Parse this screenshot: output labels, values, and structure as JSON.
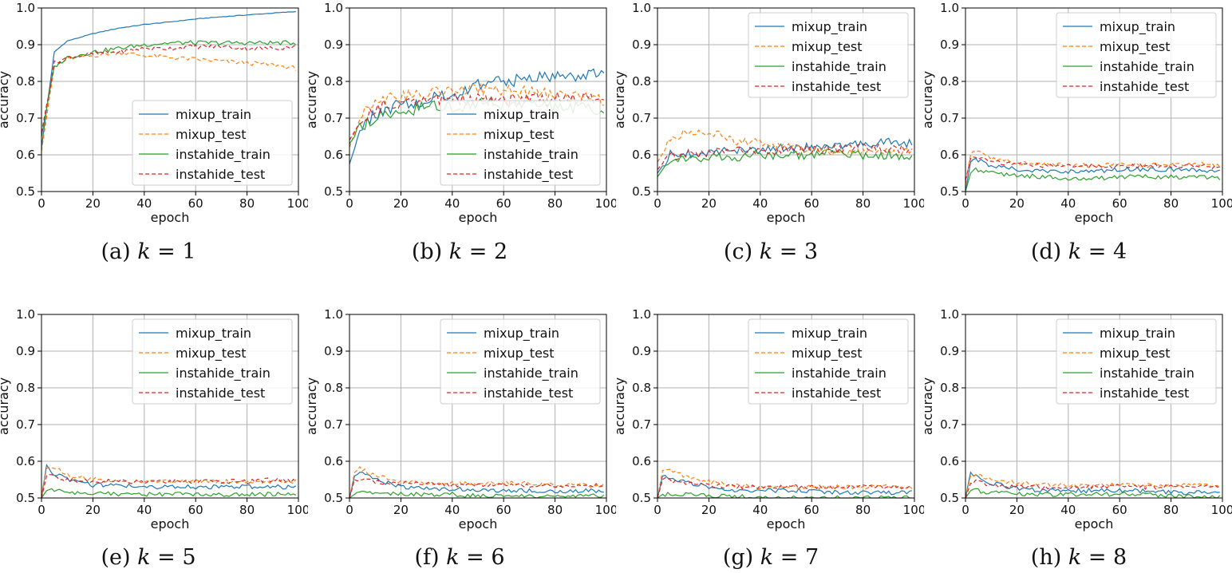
{
  "figure": {
    "panels": [
      {
        "letter": "(a)",
        "kvar": "k",
        "eq": "= 1"
      },
      {
        "letter": "(b)",
        "kvar": "k",
        "eq": "= 2"
      },
      {
        "letter": "(c)",
        "kvar": "k",
        "eq": "= 3"
      },
      {
        "letter": "(d)",
        "kvar": "k",
        "eq": "= 4"
      },
      {
        "letter": "(e)",
        "kvar": "k",
        "eq": "= 5"
      },
      {
        "letter": "(f)",
        "kvar": "k",
        "eq": "= 6"
      },
      {
        "letter": "(g)",
        "kvar": "k",
        "eq": "= 7"
      },
      {
        "letter": "(h)",
        "kvar": "k",
        "eq": "= 8"
      }
    ]
  },
  "colors": {
    "mixup_train": "#1f77b4",
    "mixup_test": "#ff7f0e",
    "instahide_train": "#2ca02c",
    "instahide_test": "#d62728",
    "grid": "#b0b0b0"
  },
  "chart_data": [
    {
      "type": "line",
      "title": "(a) k = 1",
      "xlabel": "epoch",
      "ylabel": "accuracy",
      "xlim": [
        0,
        100
      ],
      "ylim": [
        0.5,
        1.0
      ],
      "xticks": [
        "0",
        "20",
        "40",
        "60",
        "80",
        "100"
      ],
      "yticks": [
        "0.5",
        "0.6",
        "0.7",
        "0.8",
        "0.9",
        "1.0"
      ],
      "grid": true,
      "legend": "lower-right",
      "x": [
        0,
        5,
        10,
        20,
        30,
        40,
        50,
        60,
        70,
        80,
        90,
        99
      ],
      "series": [
        {
          "name": "mixup_train",
          "style": "solid",
          "color": "#1f77b4",
          "values": [
            0.62,
            0.88,
            0.91,
            0.93,
            0.945,
            0.955,
            0.962,
            0.97,
            0.976,
            0.981,
            0.986,
            0.99
          ]
        },
        {
          "name": "mixup_test",
          "style": "dashed",
          "color": "#ff7f0e",
          "values": [
            0.61,
            0.84,
            0.86,
            0.87,
            0.88,
            0.87,
            0.865,
            0.86,
            0.855,
            0.85,
            0.845,
            0.835
          ]
        },
        {
          "name": "instahide_train",
          "style": "solid",
          "color": "#2ca02c",
          "values": [
            0.65,
            0.84,
            0.865,
            0.88,
            0.89,
            0.9,
            0.905,
            0.905,
            0.905,
            0.905,
            0.905,
            0.905
          ]
        },
        {
          "name": "instahide_test",
          "style": "dashed",
          "color": "#d62728",
          "values": [
            0.66,
            0.85,
            0.865,
            0.875,
            0.88,
            0.89,
            0.89,
            0.895,
            0.895,
            0.89,
            0.89,
            0.895
          ]
        }
      ]
    },
    {
      "type": "line",
      "title": "(b) k = 2",
      "xlabel": "epoch",
      "ylabel": "accuracy",
      "xlim": [
        0,
        100
      ],
      "ylim": [
        0.5,
        1.0
      ],
      "xticks": [
        "0",
        "20",
        "40",
        "60",
        "80",
        "100"
      ],
      "yticks": [
        "0.5",
        "0.6",
        "0.7",
        "0.8",
        "0.9",
        "1.0"
      ],
      "grid": true,
      "legend": "lower-right",
      "x": [
        0,
        5,
        10,
        20,
        30,
        40,
        50,
        60,
        70,
        80,
        90,
        99
      ],
      "series": [
        {
          "name": "mixup_train",
          "style": "solid",
          "color": "#1f77b4",
          "values": [
            0.575,
            0.68,
            0.71,
            0.74,
            0.75,
            0.76,
            0.79,
            0.8,
            0.81,
            0.81,
            0.82,
            0.82
          ]
        },
        {
          "name": "mixup_test",
          "style": "dashed",
          "color": "#ff7f0e",
          "values": [
            0.62,
            0.72,
            0.75,
            0.76,
            0.77,
            0.77,
            0.78,
            0.78,
            0.77,
            0.76,
            0.76,
            0.75
          ]
        },
        {
          "name": "instahide_train",
          "style": "solid",
          "color": "#2ca02c",
          "values": [
            0.63,
            0.68,
            0.7,
            0.72,
            0.73,
            0.73,
            0.74,
            0.74,
            0.74,
            0.73,
            0.73,
            0.72
          ]
        },
        {
          "name": "instahide_test",
          "style": "dashed",
          "color": "#d62728",
          "values": [
            0.64,
            0.7,
            0.73,
            0.74,
            0.75,
            0.75,
            0.75,
            0.75,
            0.75,
            0.75,
            0.75,
            0.745
          ]
        }
      ]
    },
    {
      "type": "line",
      "title": "(c) k = 3",
      "xlabel": "epoch",
      "ylabel": "accuracy",
      "xlim": [
        0,
        100
      ],
      "ylim": [
        0.5,
        1.0
      ],
      "xticks": [
        "0",
        "20",
        "40",
        "60",
        "80",
        "100"
      ],
      "yticks": [
        "0.5",
        "0.6",
        "0.7",
        "0.8",
        "0.9",
        "1.0"
      ],
      "grid": true,
      "legend": "upper-right",
      "x": [
        0,
        5,
        10,
        20,
        30,
        40,
        50,
        60,
        70,
        80,
        90,
        99
      ],
      "series": [
        {
          "name": "mixup_train",
          "style": "solid",
          "color": "#1f77b4",
          "values": [
            0.55,
            0.6,
            0.6,
            0.61,
            0.61,
            0.615,
            0.62,
            0.62,
            0.625,
            0.63,
            0.635,
            0.63
          ]
        },
        {
          "name": "mixup_test",
          "style": "dashed",
          "color": "#ff7f0e",
          "values": [
            0.58,
            0.64,
            0.66,
            0.66,
            0.64,
            0.63,
            0.62,
            0.615,
            0.61,
            0.61,
            0.61,
            0.61
          ]
        },
        {
          "name": "instahide_train",
          "style": "solid",
          "color": "#2ca02c",
          "values": [
            0.54,
            0.59,
            0.59,
            0.595,
            0.595,
            0.6,
            0.6,
            0.6,
            0.605,
            0.6,
            0.6,
            0.59
          ]
        },
        {
          "name": "instahide_test",
          "style": "dashed",
          "color": "#d62728",
          "values": [
            0.56,
            0.6,
            0.6,
            0.605,
            0.61,
            0.61,
            0.61,
            0.615,
            0.615,
            0.62,
            0.615,
            0.615
          ]
        }
      ]
    },
    {
      "type": "line",
      "title": "(d) k = 4",
      "xlabel": "epoch",
      "ylabel": "accuracy",
      "xlim": [
        0,
        100
      ],
      "ylim": [
        0.5,
        1.0
      ],
      "xticks": [
        "0",
        "20",
        "40",
        "60",
        "80",
        "100"
      ],
      "yticks": [
        "0.5",
        "0.6",
        "0.7",
        "0.8",
        "0.9",
        "1.0"
      ],
      "grid": true,
      "legend": "upper-right",
      "x": [
        0,
        2,
        4,
        10,
        20,
        30,
        40,
        50,
        60,
        70,
        80,
        90,
        99
      ],
      "series": [
        {
          "name": "mixup_train",
          "style": "solid",
          "color": "#1f77b4",
          "values": [
            0.5,
            0.58,
            0.59,
            0.57,
            0.56,
            0.555,
            0.555,
            0.555,
            0.56,
            0.56,
            0.56,
            0.56,
            0.555
          ]
        },
        {
          "name": "mixup_test",
          "style": "dashed",
          "color": "#ff7f0e",
          "values": [
            0.52,
            0.6,
            0.61,
            0.59,
            0.58,
            0.575,
            0.575,
            0.57,
            0.575,
            0.57,
            0.575,
            0.575,
            0.57
          ]
        },
        {
          "name": "instahide_train",
          "style": "solid",
          "color": "#2ca02c",
          "values": [
            0.5,
            0.55,
            0.56,
            0.55,
            0.545,
            0.54,
            0.535,
            0.535,
            0.54,
            0.54,
            0.54,
            0.54,
            0.535
          ]
        },
        {
          "name": "instahide_test",
          "style": "dashed",
          "color": "#d62728",
          "values": [
            0.53,
            0.59,
            0.595,
            0.58,
            0.575,
            0.57,
            0.57,
            0.57,
            0.57,
            0.57,
            0.57,
            0.57,
            0.565
          ]
        }
      ]
    },
    {
      "type": "line",
      "title": "(e) k = 5",
      "xlabel": "epoch",
      "ylabel": "accuracy",
      "xlim": [
        0,
        100
      ],
      "ylim": [
        0.5,
        1.0
      ],
      "xticks": [
        "0",
        "20",
        "40",
        "60",
        "80",
        "100"
      ],
      "yticks": [
        "0.5",
        "0.6",
        "0.7",
        "0.8",
        "0.9",
        "1.0"
      ],
      "grid": true,
      "legend": "upper-right",
      "x": [
        0,
        2,
        4,
        10,
        20,
        30,
        40,
        50,
        60,
        70,
        80,
        90,
        99
      ],
      "series": [
        {
          "name": "mixup_train",
          "style": "solid",
          "color": "#1f77b4",
          "values": [
            0.5,
            0.59,
            0.57,
            0.55,
            0.535,
            0.535,
            0.53,
            0.53,
            0.53,
            0.53,
            0.53,
            0.53,
            0.53
          ]
        },
        {
          "name": "mixup_test",
          "style": "dashed",
          "color": "#ff7f0e",
          "values": [
            0.51,
            0.58,
            0.585,
            0.565,
            0.55,
            0.545,
            0.545,
            0.545,
            0.545,
            0.545,
            0.545,
            0.545,
            0.545
          ]
        },
        {
          "name": "instahide_train",
          "style": "solid",
          "color": "#2ca02c",
          "values": [
            0.5,
            0.52,
            0.52,
            0.515,
            0.515,
            0.51,
            0.51,
            0.51,
            0.51,
            0.51,
            0.51,
            0.51,
            0.51
          ]
        },
        {
          "name": "instahide_test",
          "style": "dashed",
          "color": "#d62728",
          "values": [
            0.5,
            0.56,
            0.56,
            0.55,
            0.545,
            0.545,
            0.545,
            0.545,
            0.545,
            0.545,
            0.545,
            0.55,
            0.545
          ]
        }
      ]
    },
    {
      "type": "line",
      "title": "(f) k = 6",
      "xlabel": "epoch",
      "ylabel": "accuracy",
      "xlim": [
        0,
        100
      ],
      "ylim": [
        0.5,
        1.0
      ],
      "xticks": [
        "0",
        "20",
        "40",
        "60",
        "80",
        "100"
      ],
      "yticks": [
        "0.5",
        "0.6",
        "0.7",
        "0.8",
        "0.9",
        "1.0"
      ],
      "grid": true,
      "legend": "upper-right",
      "x": [
        0,
        2,
        4,
        10,
        20,
        30,
        40,
        50,
        60,
        70,
        80,
        90,
        99
      ],
      "series": [
        {
          "name": "mixup_train",
          "style": "solid",
          "color": "#1f77b4",
          "values": [
            0.5,
            0.56,
            0.57,
            0.55,
            0.53,
            0.525,
            0.525,
            0.52,
            0.52,
            0.52,
            0.52,
            0.52,
            0.52
          ]
        },
        {
          "name": "mixup_test",
          "style": "dashed",
          "color": "#ff7f0e",
          "values": [
            0.5,
            0.57,
            0.58,
            0.56,
            0.545,
            0.54,
            0.54,
            0.54,
            0.54,
            0.54,
            0.535,
            0.535,
            0.535
          ]
        },
        {
          "name": "instahide_train",
          "style": "solid",
          "color": "#2ca02c",
          "values": [
            0.5,
            0.51,
            0.515,
            0.515,
            0.51,
            0.51,
            0.51,
            0.505,
            0.505,
            0.505,
            0.505,
            0.505,
            0.505
          ]
        },
        {
          "name": "instahide_test",
          "style": "dashed",
          "color": "#d62728",
          "values": [
            0.5,
            0.55,
            0.555,
            0.545,
            0.54,
            0.54,
            0.535,
            0.535,
            0.535,
            0.535,
            0.535,
            0.535,
            0.535
          ]
        }
      ]
    },
    {
      "type": "line",
      "title": "(g) k = 7",
      "xlabel": "epoch",
      "ylabel": "accuracy",
      "xlim": [
        0,
        100
      ],
      "ylim": [
        0.5,
        1.0
      ],
      "xticks": [
        "0",
        "20",
        "40",
        "60",
        "80",
        "100"
      ],
      "yticks": [
        "0.5",
        "0.6",
        "0.7",
        "0.8",
        "0.9",
        "1.0"
      ],
      "grid": true,
      "legend": "upper-right",
      "x": [
        0,
        2,
        4,
        10,
        20,
        30,
        40,
        50,
        60,
        70,
        80,
        90,
        99
      ],
      "series": [
        {
          "name": "mixup_train",
          "style": "solid",
          "color": "#1f77b4",
          "values": [
            0.5,
            0.56,
            0.56,
            0.545,
            0.53,
            0.52,
            0.52,
            0.52,
            0.52,
            0.515,
            0.515,
            0.515,
            0.515
          ]
        },
        {
          "name": "mixup_test",
          "style": "dashed",
          "color": "#ff7f0e",
          "values": [
            0.5,
            0.575,
            0.58,
            0.56,
            0.545,
            0.535,
            0.53,
            0.53,
            0.53,
            0.53,
            0.53,
            0.53,
            0.53
          ]
        },
        {
          "name": "instahide_train",
          "style": "solid",
          "color": "#2ca02c",
          "values": [
            0.5,
            0.51,
            0.51,
            0.51,
            0.505,
            0.505,
            0.5,
            0.5,
            0.5,
            0.5,
            0.5,
            0.5,
            0.5
          ]
        },
        {
          "name": "instahide_test",
          "style": "dashed",
          "color": "#d62728",
          "values": [
            0.5,
            0.55,
            0.55,
            0.54,
            0.535,
            0.53,
            0.53,
            0.53,
            0.53,
            0.53,
            0.53,
            0.53,
            0.53
          ]
        }
      ]
    },
    {
      "type": "line",
      "title": "(h) k = 8",
      "xlabel": "epoch",
      "ylabel": "accuracy",
      "xlim": [
        0,
        100
      ],
      "ylim": [
        0.5,
        1.0
      ],
      "xticks": [
        "0",
        "20",
        "40",
        "60",
        "80",
        "100"
      ],
      "yticks": [
        "0.5",
        "0.6",
        "0.7",
        "0.8",
        "0.9",
        "1.0"
      ],
      "grid": true,
      "legend": "upper-right",
      "x": [
        0,
        2,
        4,
        10,
        20,
        30,
        40,
        50,
        60,
        70,
        80,
        90,
        99
      ],
      "series": [
        {
          "name": "mixup_train",
          "style": "solid",
          "color": "#1f77b4",
          "values": [
            0.5,
            0.57,
            0.56,
            0.54,
            0.525,
            0.52,
            0.52,
            0.52,
            0.52,
            0.52,
            0.515,
            0.515,
            0.51
          ]
        },
        {
          "name": "mixup_test",
          "style": "dashed",
          "color": "#ff7f0e",
          "values": [
            0.5,
            0.56,
            0.565,
            0.55,
            0.54,
            0.535,
            0.535,
            0.535,
            0.535,
            0.535,
            0.535,
            0.535,
            0.53
          ]
        },
        {
          "name": "instahide_train",
          "style": "solid",
          "color": "#2ca02c",
          "values": [
            0.5,
            0.52,
            0.52,
            0.515,
            0.51,
            0.51,
            0.51,
            0.51,
            0.51,
            0.51,
            0.505,
            0.505,
            0.505
          ]
        },
        {
          "name": "instahide_test",
          "style": "dashed",
          "color": "#d62728",
          "values": [
            0.5,
            0.54,
            0.545,
            0.535,
            0.53,
            0.53,
            0.53,
            0.53,
            0.53,
            0.53,
            0.53,
            0.53,
            0.53
          ]
        }
      ]
    }
  ]
}
